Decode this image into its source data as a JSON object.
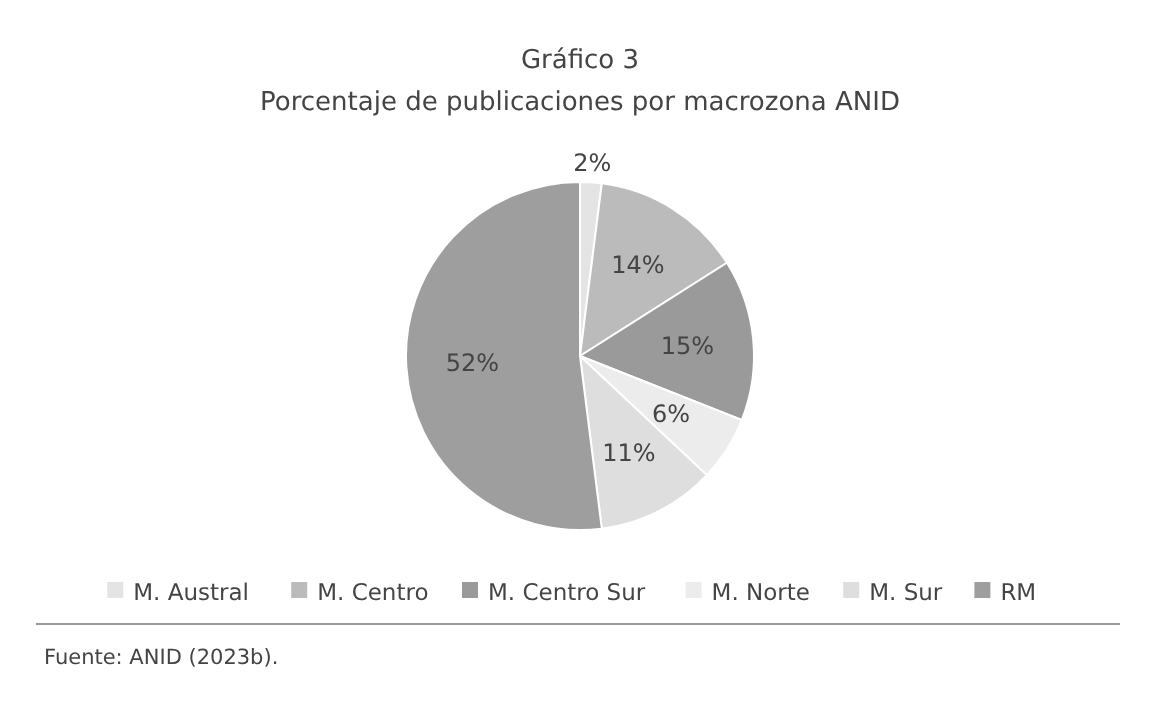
{
  "chart_data": {
    "type": "pie",
    "title": "Gráfico 3",
    "subtitle": "Porcentaje de publicaciones por macrozona ANID",
    "categories": [
      "M. Austral",
      "M. Centro",
      "M. Centro Sur",
      "M. Norte",
      "M. Sur",
      "RM"
    ],
    "values": [
      2,
      14,
      15,
      6,
      11,
      52
    ],
    "colors": [
      "#e4e4e4",
      "#bbbbbb",
      "#9a9a9a",
      "#ececec",
      "#dedede",
      "#9e9e9e"
    ],
    "value_labels": [
      "2%",
      "14%",
      "15%",
      "6%",
      "11%",
      "52%"
    ],
    "legend": "bottom",
    "annotations": [
      "Fuente: ANID (2023b)."
    ]
  }
}
